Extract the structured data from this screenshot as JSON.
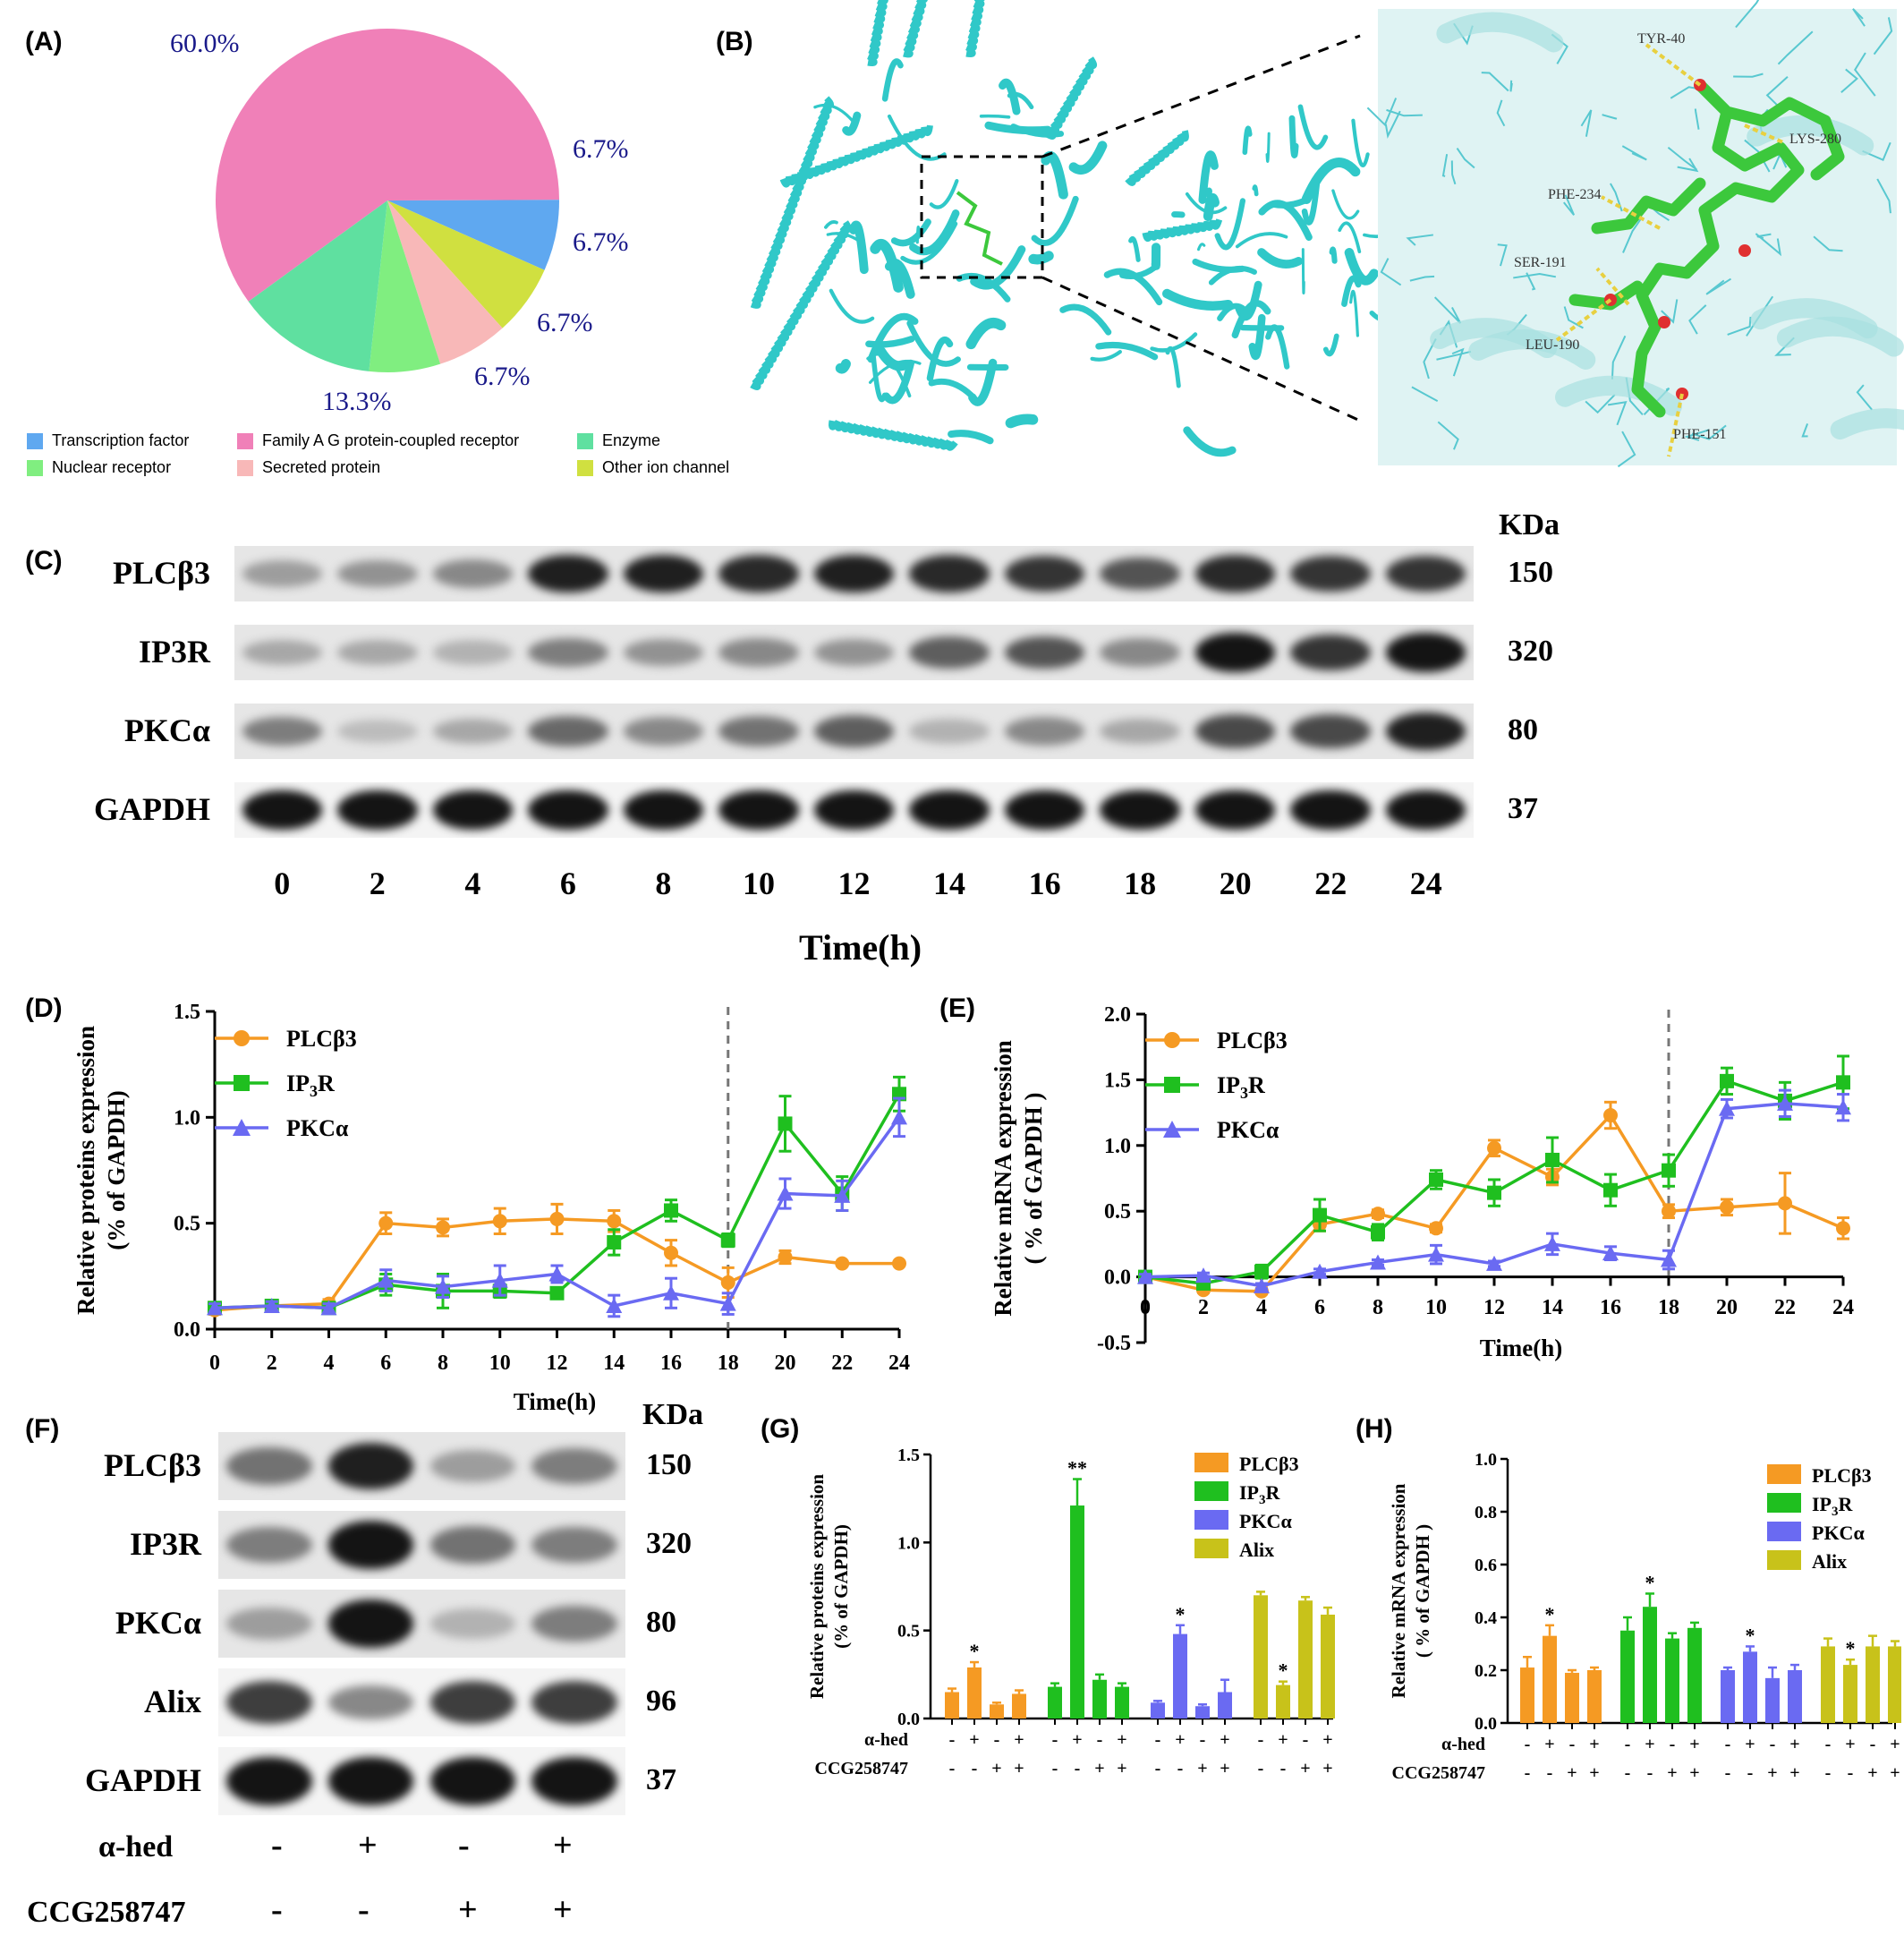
{
  "panels": {
    "A": "(A)",
    "B": "(B)",
    "C": "(C)",
    "D": "(D)",
    "E": "(E)",
    "F": "(F)",
    "G": "(G)",
    "H": "(H)"
  },
  "colors": {
    "plc": "#f59a23",
    "ip3r": "#1fbf1f",
    "pkc": "#6a6af2",
    "alix": "#c8c21a",
    "pie_tf": "#5fa8f0",
    "pie_gpcr": "#f080b8",
    "pie_enzyme": "#5fe0a0",
    "pie_nuclear": "#80ee80",
    "pie_secreted": "#f8b8b8",
    "pie_ion": "#d0e040",
    "protein": "#30c8c8",
    "ligand": "#3cc83c"
  },
  "pie": {
    "chart_data": {
      "type": "pie",
      "labels": [
        "Family A G protein-coupled receptor",
        "Transcription factor",
        "Other ion channel",
        "Secreted protein",
        "Nuclear receptor",
        "Enzyme"
      ],
      "values": [
        60.0,
        6.7,
        6.7,
        6.7,
        6.7,
        13.3
      ],
      "value_labels": [
        "60.0%",
        "6.7%",
        "6.7%",
        "6.7%",
        "6.7%",
        "13.3%"
      ]
    },
    "legend": [
      {
        "label": "Transcription factor",
        "color": "#5fa8f0"
      },
      {
        "label": "Family A G protein-coupled receptor",
        "color": "#f080b8"
      },
      {
        "label": "Enzyme",
        "color": "#5fe0a0"
      },
      {
        "label": "Nuclear receptor",
        "color": "#80ee80"
      },
      {
        "label": "Secreted protein",
        "color": "#f8b8b8"
      },
      {
        "label": "Other ion channel",
        "color": "#d0e040"
      }
    ]
  },
  "docking": {
    "residues": [
      "TYR-40",
      "LYS-280",
      "PHE-234",
      "SER-191",
      "LEU-190",
      "PHE-151"
    ]
  },
  "blotC": {
    "kda_header": "KDa",
    "rows": [
      {
        "label": "PLCβ3",
        "kda": "150",
        "intensity": [
          0.35,
          0.4,
          0.45,
          0.95,
          0.95,
          0.9,
          0.95,
          0.9,
          0.85,
          0.7,
          0.9,
          0.85,
          0.85
        ]
      },
      {
        "label": "IP3R",
        "kda": "320",
        "intensity": [
          0.3,
          0.3,
          0.25,
          0.5,
          0.4,
          0.45,
          0.4,
          0.65,
          0.7,
          0.45,
          1.0,
          0.85,
          1.0
        ]
      },
      {
        "label": "PKCα",
        "kda": "80",
        "intensity": [
          0.5,
          0.2,
          0.3,
          0.6,
          0.45,
          0.55,
          0.65,
          0.25,
          0.45,
          0.3,
          0.75,
          0.75,
          0.95
        ]
      },
      {
        "label": "GAPDH",
        "kda": "37",
        "intensity": [
          1,
          1,
          1,
          1,
          1,
          1,
          1,
          1,
          1,
          1,
          1,
          1,
          1
        ]
      }
    ],
    "lanes": [
      "0",
      "2",
      "4",
      "6",
      "8",
      "10",
      "12",
      "14",
      "16",
      "18",
      "20",
      "22",
      "24"
    ],
    "xlabel": "Time(h)"
  },
  "blotF": {
    "kda_header": "KDa",
    "rows": [
      {
        "label": "PLCβ3",
        "kda": "150",
        "intensity": [
          0.55,
          0.95,
          0.35,
          0.5
        ]
      },
      {
        "label": "IP3R",
        "kda": "320",
        "intensity": [
          0.5,
          1.0,
          0.55,
          0.5
        ]
      },
      {
        "label": "PKCα",
        "kda": "80",
        "intensity": [
          0.35,
          1.0,
          0.25,
          0.5
        ]
      },
      {
        "label": "Alix",
        "kda": "96",
        "intensity": [
          0.8,
          0.45,
          0.8,
          0.8
        ]
      },
      {
        "label": "GAPDH",
        "kda": "37",
        "intensity": [
          1,
          1,
          1,
          1
        ]
      }
    ],
    "treat1_label": "α-hed",
    "treat1": [
      "-",
      "+",
      "-",
      "+"
    ],
    "treat2_label": "CCG258747",
    "treat2": [
      "-",
      "-",
      "+",
      "+"
    ]
  },
  "lineD": {
    "chart_data": {
      "type": "line",
      "x": [
        0,
        2,
        4,
        6,
        8,
        10,
        12,
        14,
        16,
        18,
        20,
        22,
        24
      ],
      "series": [
        {
          "name": "PLCβ3",
          "values": [
            0.09,
            0.11,
            0.12,
            0.5,
            0.48,
            0.51,
            0.52,
            0.51,
            0.36,
            0.22,
            0.34,
            0.31,
            0.31
          ],
          "err": [
            0.02,
            0.02,
            0.02,
            0.05,
            0.04,
            0.06,
            0.07,
            0.05,
            0.06,
            0.07,
            0.03,
            0.01,
            0.01
          ]
        },
        {
          "name": "IP3R",
          "values": [
            0.1,
            0.11,
            0.1,
            0.21,
            0.18,
            0.18,
            0.17,
            0.41,
            0.56,
            0.42,
            0.97,
            0.64,
            1.11
          ],
          "err": [
            0.02,
            0.02,
            0.02,
            0.05,
            0.08,
            0.03,
            0.02,
            0.06,
            0.05,
            0.03,
            0.13,
            0.08,
            0.08
          ]
        },
        {
          "name": "PKCα",
          "values": [
            0.1,
            0.11,
            0.1,
            0.23,
            0.2,
            0.23,
            0.26,
            0.11,
            0.17,
            0.12,
            0.64,
            0.63,
            1.0
          ],
          "err": [
            0.02,
            0.02,
            0.02,
            0.05,
            0.05,
            0.07,
            0.04,
            0.05,
            0.07,
            0.05,
            0.07,
            0.07,
            0.09
          ]
        }
      ],
      "ylabel": "Relative proteins expression\n(% of GAPDH)",
      "xlabel": "Time(h)",
      "ylim": [
        0,
        1.5
      ],
      "yticks": [
        "0.0",
        "0.5",
        "1.0",
        "1.5"
      ],
      "vline_x": 18
    }
  },
  "lineE": {
    "chart_data": {
      "type": "line",
      "x": [
        0,
        2,
        4,
        6,
        8,
        10,
        12,
        14,
        16,
        18,
        20,
        22,
        24
      ],
      "series": [
        {
          "name": "PLCβ3",
          "values": [
            0.0,
            -0.1,
            -0.11,
            0.4,
            0.48,
            0.37,
            0.98,
            0.76,
            1.23,
            0.5,
            0.53,
            0.56,
            0.37
          ],
          "err": [
            0.02,
            0.02,
            0.02,
            0.05,
            0.03,
            0.03,
            0.06,
            0.06,
            0.1,
            0.05,
            0.06,
            0.23,
            0.08
          ]
        },
        {
          "name": "IP3R",
          "values": [
            0.0,
            -0.05,
            0.04,
            0.47,
            0.34,
            0.74,
            0.64,
            0.89,
            0.66,
            0.81,
            1.49,
            1.34,
            1.48
          ],
          "err": [
            0.02,
            0.02,
            0.05,
            0.12,
            0.06,
            0.07,
            0.1,
            0.17,
            0.12,
            0.12,
            0.1,
            0.14,
            0.2
          ]
        },
        {
          "name": "PKCα",
          "values": [
            0.0,
            0.01,
            -0.07,
            0.04,
            0.11,
            0.17,
            0.1,
            0.25,
            0.18,
            0.13,
            1.28,
            1.32,
            1.29
          ],
          "err": [
            0.02,
            0.02,
            0.02,
            0.02,
            0.02,
            0.07,
            0.02,
            0.08,
            0.05,
            0.07,
            0.07,
            0.1,
            0.1
          ]
        }
      ],
      "ylabel": "Relative mRNA expression\n( % of GAPDH )",
      "xlabel": "Time(h)",
      "ylim": [
        -0.5,
        2.0
      ],
      "yticks": [
        "-0.5",
        "0.0",
        "0.5",
        "1.0",
        "1.5",
        "2.0"
      ],
      "vline_x": 18
    }
  },
  "barG": {
    "chart_data": {
      "type": "bar",
      "groups": [
        "PLCβ3",
        "IP3R",
        "PKCα",
        "Alix"
      ],
      "values": [
        [
          0.15,
          0.29,
          0.08,
          0.14
        ],
        [
          0.18,
          1.21,
          0.22,
          0.18
        ],
        [
          0.09,
          0.48,
          0.07,
          0.15
        ],
        [
          0.7,
          0.19,
          0.67,
          0.59
        ]
      ],
      "err": [
        [
          0.02,
          0.03,
          0.01,
          0.02
        ],
        [
          0.02,
          0.15,
          0.03,
          0.02
        ],
        [
          0.01,
          0.05,
          0.01,
          0.07
        ],
        [
          0.02,
          0.02,
          0.02,
          0.04
        ]
      ],
      "stars": [
        [
          "",
          "*",
          "",
          ""
        ],
        [
          "",
          "**",
          "",
          ""
        ],
        [
          "",
          "*",
          "",
          ""
        ],
        [
          "",
          "*",
          "",
          ""
        ]
      ],
      "ylabel": "Relative proteins expression\n(% of GAPDH)",
      "ylim": [
        0,
        1.5
      ],
      "yticks": [
        "0.0",
        "0.5",
        "1.0",
        "1.5"
      ],
      "treat1_label": "α-hed",
      "treat1": [
        "-",
        "+",
        "-",
        "+"
      ],
      "treat2_label": "CCG258747",
      "treat2": [
        "-",
        "-",
        "+",
        "+"
      ]
    }
  },
  "barH": {
    "chart_data": {
      "type": "bar",
      "groups": [
        "PLCβ3",
        "IP3R",
        "PKCα",
        "Alix"
      ],
      "values": [
        [
          0.21,
          0.33,
          0.19,
          0.2
        ],
        [
          0.35,
          0.44,
          0.32,
          0.36
        ],
        [
          0.2,
          0.27,
          0.17,
          0.2
        ],
        [
          0.29,
          0.22,
          0.29,
          0.29
        ]
      ],
      "err": [
        [
          0.04,
          0.04,
          0.01,
          0.01
        ],
        [
          0.05,
          0.05,
          0.02,
          0.02
        ],
        [
          0.01,
          0.02,
          0.04,
          0.02
        ],
        [
          0.03,
          0.02,
          0.04,
          0.02
        ]
      ],
      "stars": [
        [
          "",
          "*",
          "",
          ""
        ],
        [
          "",
          "*",
          "",
          ""
        ],
        [
          "",
          "*",
          "",
          ""
        ],
        [
          "",
          "*",
          "",
          ""
        ]
      ],
      "ylabel": "Relative mRNA expression\n( % of GAPDH )",
      "ylim": [
        0,
        1.0
      ],
      "yticks": [
        "0.0",
        "0.2",
        "0.4",
        "0.6",
        "0.8",
        "1.0"
      ],
      "treat1_label": "α-hed",
      "treat1": [
        "-",
        "+",
        "-",
        "+"
      ],
      "treat2_label": "CCG258747",
      "treat2": [
        "-",
        "-",
        "+",
        "+"
      ]
    }
  }
}
